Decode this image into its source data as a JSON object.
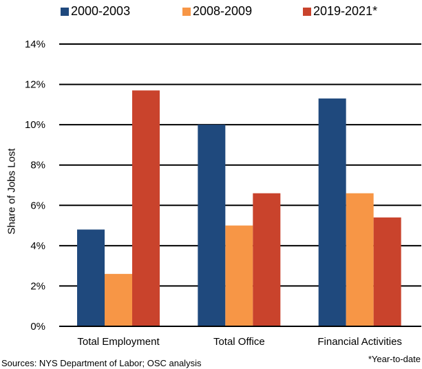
{
  "chart_data": {
    "type": "bar",
    "title": "",
    "xlabel": "",
    "ylabel": "Share of Jobs Lost",
    "categories": [
      "Total Employment",
      "Total Office",
      "Financial Activities"
    ],
    "series": [
      {
        "name": "2000-2003",
        "values": [
          4.8,
          10.0,
          11.3
        ],
        "color": "#1f497d"
      },
      {
        "name": "2008-2009",
        "values": [
          2.6,
          5.0,
          6.6
        ],
        "color": "#f79646"
      },
      {
        "name": "2019-2021*",
        "values": [
          11.7,
          6.6,
          5.4
        ],
        "color": "#c9432c"
      }
    ],
    "ylim": [
      0,
      14
    ],
    "yticks": [
      0,
      2,
      4,
      6,
      8,
      10,
      12,
      14
    ],
    "ytick_format": "percent",
    "grid": true,
    "legend": "top"
  },
  "notes": {
    "source": "Sources: NYS Department of Labor; OSC analysis",
    "footnote": "*Year-to-date"
  }
}
